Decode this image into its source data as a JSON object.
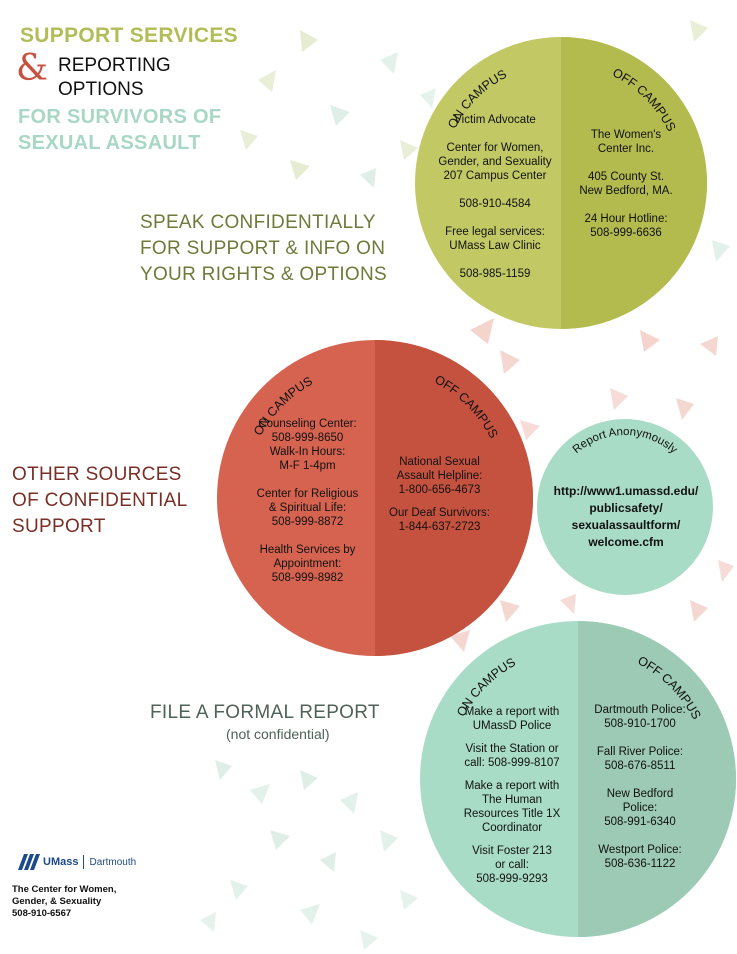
{
  "header": {
    "support": "SUPPORT SERVICES",
    "ampersand": "&",
    "reporting": "REPORTING",
    "options": "OPTIONS",
    "survivors_line1": "FOR SURVIVORS OF",
    "survivors_line2": "SEXUAL ASSAULT"
  },
  "colors": {
    "green": "#c2c964",
    "green_dark": "#b3ba4e",
    "red": "#d56350",
    "red_dark": "#c5523f",
    "mint": "#a9dcc6",
    "mint_dark": "#9ccab4"
  },
  "section1": {
    "heading": [
      "SPEAK CONFIDENTIALLY",
      "FOR SUPPORT & INFO ON",
      "YOUR RIGHTS & OPTIONS"
    ],
    "on_label": "ON CAMPUS",
    "off_label": "OFF CAMPUS",
    "on": {
      "advocate": "Victim Advocate",
      "center": [
        "Center for Women,",
        "Gender, and Sexuality",
        "207 Campus Center"
      ],
      "phone": "508-910-4584",
      "legal": [
        "Free legal services:",
        "UMass Law Clinic"
      ],
      "legal_phone": "508-985-1159"
    },
    "off": {
      "name": [
        "The Women's",
        "Center Inc."
      ],
      "address": [
        "405 County St.",
        "New Bedford, MA."
      ],
      "hotline": [
        "24 Hour Hotline:",
        "508-999-6636"
      ]
    }
  },
  "section2": {
    "heading": [
      "OTHER SOURCES",
      "OF CONFIDENTIAL",
      "SUPPORT"
    ],
    "on_label": "ON CAMPUS",
    "off_label": "OFF CAMPUS",
    "on": {
      "counseling": [
        "Counseling Center:",
        "508-999-8650",
        "Walk-In Hours:",
        "M-F 1-4pm"
      ],
      "religious": [
        "Center for Religious",
        "& Spiritual Life:",
        "508-999-8872"
      ],
      "health": [
        "Health Services by",
        "Appointment:",
        "508-999-8982"
      ]
    },
    "off": {
      "national": [
        "National Sexual",
        "Assault Helpline:",
        "1-800-656-4673"
      ],
      "deaf": [
        "Our Deaf Survivors:",
        "1-844-637-2723"
      ]
    },
    "anon_label": "Report Anonymously",
    "anon_url": [
      "http://www1.umassd.edu/",
      "publicsafety/",
      "sexualassaultform/",
      "welcome.cfm"
    ]
  },
  "section3": {
    "heading": "FILE A FORMAL REPORT",
    "subheading": "(not confidential)",
    "on_label": "ON CAMPUS",
    "off_label": "OFF CAMPUS",
    "on": {
      "police": [
        "Make a report with",
        "UMassD Police"
      ],
      "station": [
        "Visit the Station or",
        "call: 508-999-8107"
      ],
      "hr": [
        "Make a report with",
        "The Human",
        "Resources Title 1X",
        "Coordinator"
      ],
      "foster": [
        "Visit Foster 213",
        "or call:",
        "508-999-9293"
      ]
    },
    "off": {
      "dartmouth": [
        "Dartmouth Police:",
        "508-910-1700"
      ],
      "fallriver": [
        "Fall River Police:",
        "508-676-8511"
      ],
      "newbedford": [
        "New Bedford",
        "Police:",
        "508-991-6340"
      ],
      "westport": [
        "Westport Police:",
        "508-636-1122"
      ]
    }
  },
  "footer": {
    "logo_umass": "UMass",
    "logo_dartmouth": "Dartmouth",
    "lines": [
      "The Center for Women,",
      "Gender, & Sexuality",
      "508-910-6567"
    ]
  }
}
